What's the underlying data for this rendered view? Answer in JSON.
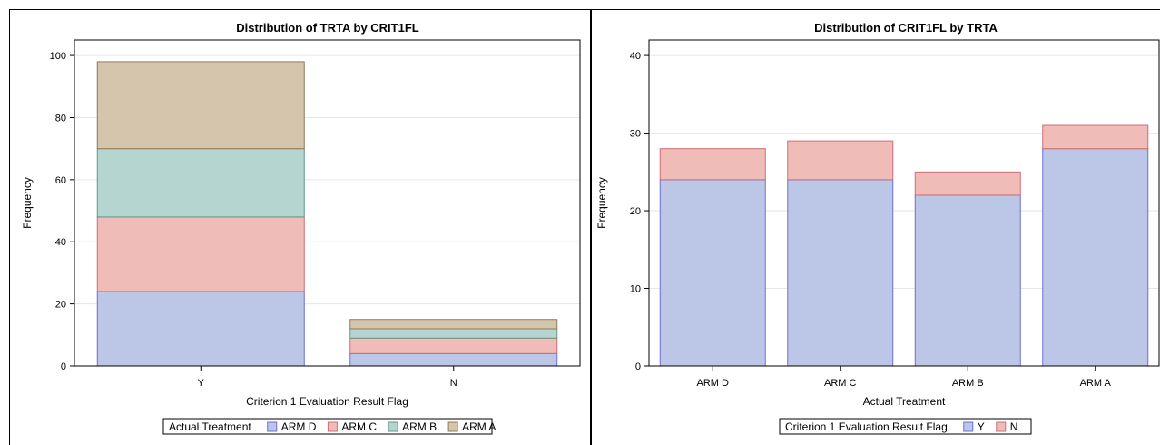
{
  "chart_data": [
    {
      "type": "bar",
      "stacked": true,
      "title": "Distribution of TRTA by CRIT1FL",
      "xlabel": "Criterion 1 Evaluation Result Flag",
      "ylabel": "Frequency",
      "categories": [
        "Y",
        "N"
      ],
      "ylim": [
        0,
        105
      ],
      "yticks": [
        0,
        20,
        40,
        60,
        80,
        100
      ],
      "grid": true,
      "legend": {
        "title": "Actual Treatment",
        "placement": "bottom-center",
        "entries": [
          "ARM D",
          "ARM C",
          "ARM B",
          "ARM A"
        ]
      },
      "series": [
        {
          "name": "ARM D",
          "values": [
            24,
            4
          ],
          "fill": "#bcc6e6",
          "stroke": "#6b6fd8"
        },
        {
          "name": "ARM C",
          "values": [
            24,
            5
          ],
          "fill": "#efbcb8",
          "stroke": "#d06c72"
        },
        {
          "name": "ARM B",
          "values": [
            22,
            3
          ],
          "fill": "#b5d6d0",
          "stroke": "#5f9a8a"
        },
        {
          "name": "ARM A",
          "values": [
            28,
            3
          ],
          "fill": "#d6c5ad",
          "stroke": "#8f7b55"
        }
      ]
    },
    {
      "type": "bar",
      "stacked": true,
      "title": "Distribution of CRIT1FL by TRTA",
      "xlabel": "Actual Treatment",
      "ylabel": "Frequency",
      "categories": [
        "ARM D",
        "ARM C",
        "ARM B",
        "ARM A"
      ],
      "ylim": [
        0,
        42
      ],
      "yticks": [
        0,
        10,
        20,
        30,
        40
      ],
      "grid": true,
      "legend": {
        "title": "Criterion 1 Evaluation Result Flag",
        "placement": "bottom-center",
        "entries": [
          "Y",
          "N"
        ]
      },
      "series": [
        {
          "name": "Y",
          "values": [
            24,
            24,
            22,
            28
          ],
          "fill": "#bcc6e6",
          "stroke": "#6b6fd8"
        },
        {
          "name": "N",
          "values": [
            4,
            5,
            3,
            3
          ],
          "fill": "#efbcb8",
          "stroke": "#d06c72"
        }
      ]
    }
  ]
}
